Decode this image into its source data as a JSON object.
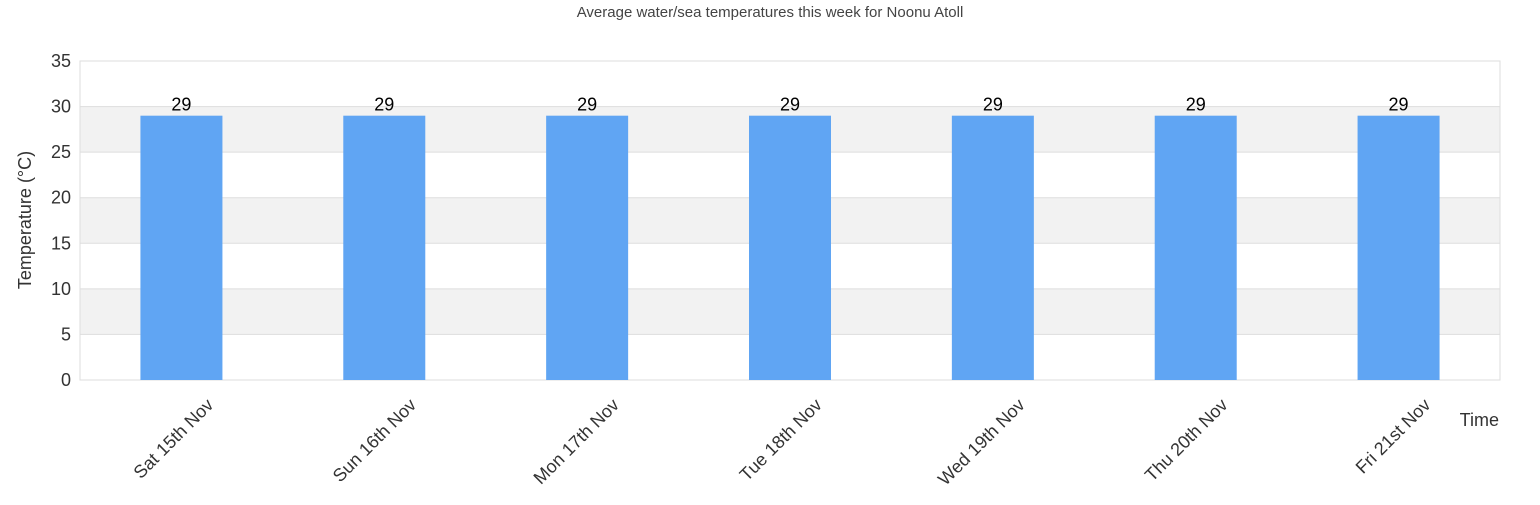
{
  "chart_data": {
    "type": "bar",
    "title": "Average water/sea temperatures this week for Noonu Atoll",
    "xlabel": "Time",
    "ylabel": "Temperature (°C)",
    "categories": [
      "Sat 15th Nov",
      "Sun 16th Nov",
      "Mon 17th Nov",
      "Tue 18th Nov",
      "Wed 19th Nov",
      "Thu 20th Nov",
      "Fri 21st Nov"
    ],
    "values": [
      29,
      29,
      29,
      29,
      29,
      29,
      29
    ],
    "ylim": [
      0,
      35
    ],
    "yticks": [
      0,
      5,
      10,
      15,
      20,
      25,
      30,
      35
    ],
    "grid": "horizontal bands",
    "data_labels": true,
    "colors": {
      "bar": "#60a5f3",
      "band": "#f2f2f2",
      "gridline": "#dddddd",
      "text": "#333333",
      "label": "#000000"
    }
  }
}
